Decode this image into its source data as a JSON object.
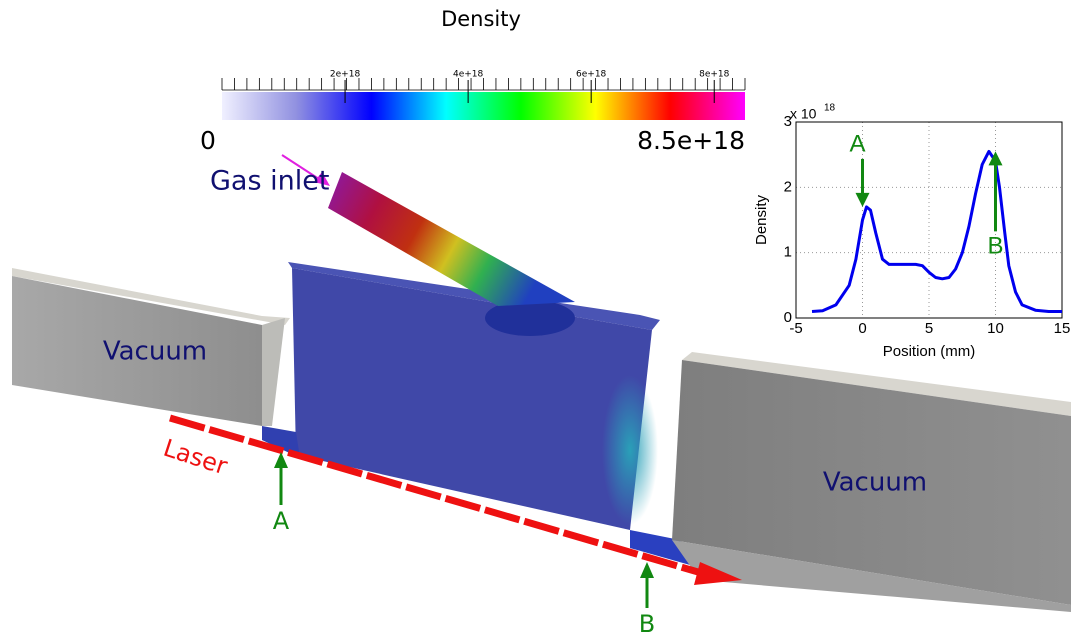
{
  "chart_data": [
    {
      "type": "line",
      "x": [
        -3.8,
        -3,
        -2,
        -1,
        -0.5,
        0,
        0.3,
        0.6,
        1,
        1.5,
        2,
        3,
        4,
        4.5,
        5,
        5.5,
        6,
        6.5,
        7,
        7.5,
        8,
        8.5,
        9,
        9.5,
        10,
        10.3,
        10.7,
        11,
        11.5,
        12,
        13,
        14,
        15
      ],
      "series": [
        {
          "name": "Density",
          "color": "#0000ee",
          "values": [
            0.1,
            0.11,
            0.2,
            0.5,
            0.9,
            1.5,
            1.7,
            1.65,
            1.3,
            0.9,
            0.82,
            0.82,
            0.82,
            0.8,
            0.7,
            0.62,
            0.6,
            0.62,
            0.75,
            1.0,
            1.4,
            1.9,
            2.35,
            2.55,
            2.4,
            2.0,
            1.3,
            0.8,
            0.4,
            0.2,
            0.12,
            0.1,
            0.1
          ]
        }
      ],
      "xlabel": "Position (mm)",
      "ylabel": "Density",
      "y_scale_label": "x 10",
      "y_scale_exponent": "18",
      "xlim": [
        -5,
        15
      ],
      "xticks": [
        -5,
        0,
        5,
        10,
        15
      ],
      "ylim": [
        0,
        3
      ],
      "yticks": [
        0,
        1,
        2,
        3
      ],
      "grid": true,
      "annotations": [
        {
          "text": "A",
          "x": 0,
          "y": 1.7,
          "direction": "down"
        },
        {
          "text": "B",
          "x": 10,
          "y": 2.55,
          "direction": "up"
        }
      ],
      "annotation_color": "#118811"
    },
    {
      "type": "colorbar",
      "title": "Density",
      "colors": [
        "#f0f0ff",
        "#9090e0",
        "#0000ff",
        "#00ffff",
        "#00ff00",
        "#ffff00",
        "#ff0000",
        "#ff00ff"
      ],
      "clim": [
        0,
        {
          "value": 8.5e+18,
          "label": "8.5e+18"
        }
      ],
      "cticks": [
        {
          "value": 2e+18,
          "label": "2e+18"
        },
        {
          "value": 4e+18,
          "label": "4e+18"
        },
        {
          "value": 6e+18,
          "label": "6e+18"
        },
        {
          "value": 8e+18,
          "label": "8e+18"
        }
      ]
    }
  ],
  "scene": {
    "gas_inlet": "Gas inlet",
    "vacuum_left": "Vacuum",
    "vacuum_right": "Vacuum",
    "laser": "Laser",
    "point_a": "A",
    "point_b": "B"
  }
}
